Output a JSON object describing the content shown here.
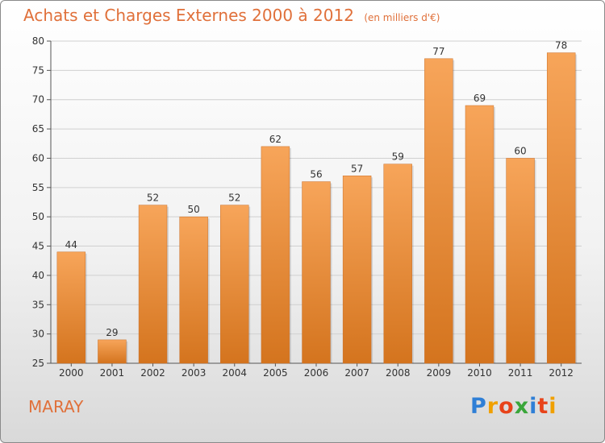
{
  "header": {
    "title": "Achats et Charges Externes 2000 à 2012",
    "unit": "(en milliers d'€)"
  },
  "footer": {
    "commune": "MARAY",
    "logo": "Proxiti"
  },
  "colors": {
    "title": "#e0703a",
    "bar_top": "#f7a55a",
    "bar_bottom": "#d4741e",
    "grid": "#d0d0d0"
  },
  "chart_data": {
    "type": "bar",
    "title": "Achats et Charges Externes 2000 à 2012",
    "subtitle": "(en milliers d'€)",
    "categories": [
      "2000",
      "2001",
      "2002",
      "2003",
      "2004",
      "2005",
      "2006",
      "2007",
      "2008",
      "2009",
      "2010",
      "2011",
      "2012"
    ],
    "values": [
      44,
      29,
      52,
      50,
      52,
      62,
      56,
      57,
      59,
      77,
      69,
      60,
      78
    ],
    "ylim": [
      25,
      80
    ],
    "yticks": [
      25,
      30,
      35,
      40,
      45,
      50,
      55,
      60,
      65,
      70,
      75,
      80
    ],
    "grid": true,
    "xlabel": "",
    "ylabel": ""
  }
}
